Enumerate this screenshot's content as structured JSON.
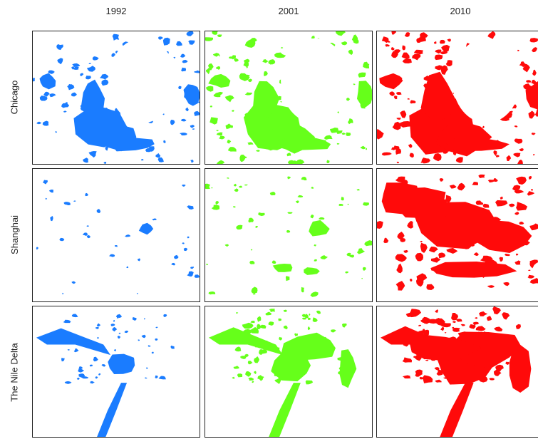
{
  "columns": [
    {
      "label": "1992",
      "color": "#1a7cff"
    },
    {
      "label": "2001",
      "color": "#66ff1a"
    },
    {
      "label": "2010",
      "color": "#ff0a0a"
    }
  ],
  "rows": [
    {
      "label": "Chicago"
    },
    {
      "label": "Shanghai"
    },
    {
      "label": "The Nile Delta"
    }
  ]
}
